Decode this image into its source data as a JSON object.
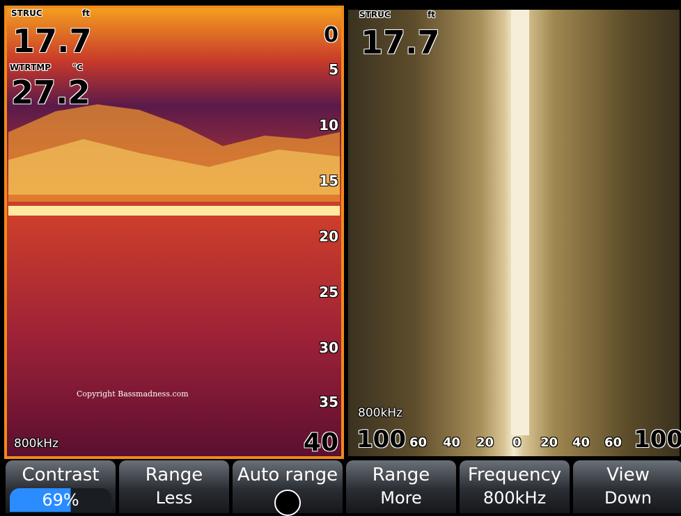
{
  "left_panel": {
    "struc_label": "STRUC",
    "struc_unit": "ft",
    "depth": "17.7",
    "wtrtmp_label": "WTRTMP",
    "temp_unit": "°C",
    "temp": "27.2",
    "depth_scale": [
      "0",
      "5",
      "10",
      "15",
      "20",
      "25",
      "30",
      "35",
      "40"
    ],
    "frequency": "800kHz",
    "watermark": "Copyright Bassmadness.com"
  },
  "right_panel": {
    "struc_label": "STRUC",
    "struc_unit": "ft",
    "depth": "17.7",
    "frequency": "800kHz",
    "side_scale": [
      "100",
      "60",
      "40",
      "20",
      "0",
      "20",
      "40",
      "60",
      "100"
    ]
  },
  "softkeys": [
    {
      "label": "Contrast",
      "value": "69%"
    },
    {
      "label": "Range",
      "value": "Less"
    },
    {
      "label": "Auto range"
    },
    {
      "label": "Range",
      "value": "More"
    },
    {
      "label": "Frequency",
      "value": "800kHz"
    },
    {
      "label": "View",
      "value": "Down"
    }
  ]
}
